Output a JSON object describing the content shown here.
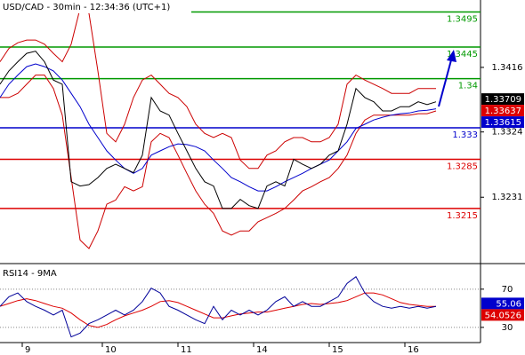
{
  "chart_data": [
    {
      "type": "line",
      "title": "USD/CAD - 30min - 12:34:36 (UTC+1)",
      "x": [
        0,
        1,
        2,
        3,
        4,
        5,
        6,
        7,
        8,
        9,
        10,
        11,
        12,
        13,
        14,
        15,
        16,
        17,
        18,
        19,
        20,
        21,
        22,
        23,
        24,
        25,
        26,
        27,
        28,
        29,
        30,
        31,
        32,
        33,
        34,
        35,
        36,
        37,
        38,
        39,
        40,
        41,
        42,
        43,
        44,
        45,
        46,
        47,
        48,
        49
      ],
      "xlim": [
        0,
        54
      ],
      "ylim": [
        1.3139,
        1.3512
      ],
      "yticks": [
        1.3416,
        1.3324,
        1.3231
      ],
      "series": [
        {
          "color": "#cc0000",
          "values": [
            1.3424,
            1.3443,
            1.3451,
            1.3455,
            1.3455,
            1.3449,
            1.3436,
            1.3424,
            1.3449,
            1.35,
            1.3493,
            1.3411,
            1.3322,
            1.331,
            1.3335,
            1.3373,
            1.3398,
            1.3405,
            1.3392,
            1.3379,
            1.3373,
            1.336,
            1.3335,
            1.3322,
            1.3316,
            1.3322,
            1.3316,
            1.3284,
            1.3272,
            1.3272,
            1.3291,
            1.3297,
            1.331,
            1.3316,
            1.3316,
            1.331,
            1.331,
            1.3316,
            1.3335,
            1.3392,
            1.3405,
            1.3398,
            1.3392,
            1.3386,
            1.3379,
            1.3379,
            1.3379,
            1.3386,
            1.3386,
            1.3386
          ]
        },
        {
          "color": "#cc0000",
          "values": [
            1.3373,
            1.3373,
            1.3379,
            1.3392,
            1.3405,
            1.3405,
            1.3386,
            1.3348,
            1.3259,
            1.317,
            1.3158,
            1.3183,
            1.3221,
            1.3227,
            1.3246,
            1.324,
            1.3246,
            1.331,
            1.3322,
            1.3316,
            1.3291,
            1.3265,
            1.324,
            1.3221,
            1.3208,
            1.3183,
            1.3177,
            1.3183,
            1.3183,
            1.3196,
            1.3202,
            1.3208,
            1.3215,
            1.3227,
            1.324,
            1.3246,
            1.3253,
            1.3259,
            1.3272,
            1.3291,
            1.3322,
            1.3341,
            1.3348,
            1.3348,
            1.3348,
            1.3348,
            1.3348,
            1.335,
            1.335,
            1.3354
          ]
        },
        {
          "color": "#0000cc",
          "values": [
            1.3373,
            1.3392,
            1.3405,
            1.3417,
            1.3421,
            1.3417,
            1.3411,
            1.3398,
            1.3379,
            1.336,
            1.3335,
            1.3316,
            1.3297,
            1.3284,
            1.3272,
            1.3265,
            1.3272,
            1.3291,
            1.3297,
            1.3303,
            1.3307,
            1.3306,
            1.3303,
            1.3297,
            1.3284,
            1.3272,
            1.3259,
            1.3253,
            1.3246,
            1.324,
            1.324,
            1.3246,
            1.3253,
            1.3259,
            1.3265,
            1.3272,
            1.3278,
            1.3284,
            1.3297,
            1.331,
            1.3329,
            1.3335,
            1.3341,
            1.3345,
            1.3348,
            1.335,
            1.3351,
            1.3354,
            1.3355,
            1.3357
          ]
        },
        {
          "color": "#000000",
          "values": [
            1.3392,
            1.3411,
            1.3424,
            1.3436,
            1.3439,
            1.3424,
            1.3398,
            1.3392,
            1.3253,
            1.3247,
            1.3249,
            1.3259,
            1.3272,
            1.3278,
            1.3272,
            1.3266,
            1.3291,
            1.3373,
            1.3354,
            1.3348,
            1.3322,
            1.3297,
            1.3272,
            1.3253,
            1.3247,
            1.3215,
            1.3215,
            1.3228,
            1.3219,
            1.3215,
            1.3247,
            1.3253,
            1.3247,
            1.3285,
            1.3278,
            1.3272,
            1.3278,
            1.3291,
            1.3297,
            1.3335,
            1.3386,
            1.3373,
            1.3367,
            1.3354,
            1.3354,
            1.336,
            1.336,
            1.3367,
            1.3363,
            1.3367
          ]
        }
      ],
      "levels": [
        {
          "value": 1.3495,
          "color": "#009900"
        },
        {
          "value": 1.3445,
          "color": "#009900"
        },
        {
          "value": 1.34,
          "color": "#009900"
        },
        {
          "value": 1.333,
          "color": "#0000cc"
        },
        {
          "value": 1.3285,
          "color": "#dd0000"
        },
        {
          "value": 1.3215,
          "color": "#dd0000"
        }
      ],
      "price_labels": [
        {
          "value": 1.33709,
          "color": "#000000"
        },
        {
          "value": 1.33637,
          "color": "#dd0000"
        },
        {
          "value": 1.33615,
          "color": "#0000cc"
        }
      ]
    },
    {
      "type": "line",
      "title": "RSI14 - 9MA",
      "x": [
        0,
        1,
        2,
        3,
        4,
        5,
        6,
        7,
        8,
        9,
        10,
        11,
        12,
        13,
        14,
        15,
        16,
        17,
        18,
        19,
        20,
        21,
        22,
        23,
        24,
        25,
        26,
        27,
        28,
        29,
        30,
        31,
        32,
        33,
        34,
        35,
        36,
        37,
        38,
        39,
        40,
        41,
        42,
        43,
        44,
        45,
        46,
        47,
        48,
        49
      ],
      "xlim": [
        0,
        54
      ],
      "xticks": [
        {
          "value": 2.5,
          "label": "9"
        },
        {
          "value": 11.5,
          "label": "10"
        },
        {
          "value": 20,
          "label": "11"
        },
        {
          "value": 28.5,
          "label": "14"
        },
        {
          "value": 37,
          "label": "15"
        },
        {
          "value": 45.5,
          "label": "16"
        }
      ],
      "ylim": [
        15,
        94
      ],
      "yticks": [
        70,
        30
      ],
      "series": [
        {
          "color": "#dd0000",
          "values": [
            52,
            55,
            58,
            60,
            58,
            55,
            52,
            50,
            45,
            38,
            32,
            30,
            33,
            38,
            42,
            45,
            48,
            52,
            57,
            58,
            56,
            52,
            48,
            44,
            40,
            40,
            42,
            44,
            45,
            46,
            46,
            48,
            50,
            52,
            54,
            55,
            54,
            55,
            56,
            58,
            62,
            66,
            66,
            64,
            60,
            56,
            54,
            53,
            52,
            52
          ]
        },
        {
          "color": "#000099",
          "values": [
            52,
            62,
            66,
            57,
            52,
            48,
            43,
            48,
            20,
            24,
            34,
            38,
            43,
            48,
            43,
            48,
            57,
            71,
            66,
            52,
            48,
            43,
            38,
            34,
            52,
            38,
            48,
            43,
            48,
            43,
            48,
            57,
            62,
            52,
            57,
            52,
            52,
            57,
            62,
            76,
            83,
            66,
            57,
            52,
            50,
            52,
            50,
            52,
            50,
            52
          ]
        }
      ],
      "price_labels": [
        {
          "value": 55.06,
          "color": "#0000cc"
        },
        {
          "value": 54.0526,
          "color": "#dd0000"
        }
      ]
    }
  ]
}
